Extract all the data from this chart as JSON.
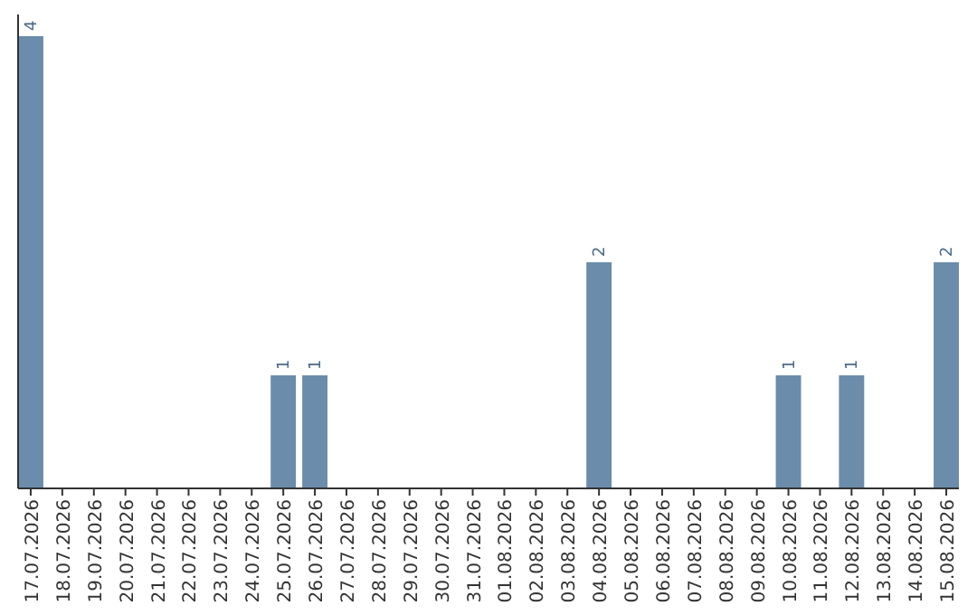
{
  "chart_data": {
    "type": "bar",
    "categories": [
      "17.07.2026",
      "18.07.2026",
      "19.07.2026",
      "20.07.2026",
      "21.07.2026",
      "22.07.2026",
      "23.07.2026",
      "24.07.2026",
      "25.07.2026",
      "26.07.2026",
      "27.07.2026",
      "28.07.2026",
      "29.07.2026",
      "30.07.2026",
      "31.07.2026",
      "01.08.2026",
      "02.08.2026",
      "03.08.2026",
      "04.08.2026",
      "05.08.2026",
      "06.08.2026",
      "07.08.2026",
      "08.08.2026",
      "09.08.2026",
      "10.08.2026",
      "11.08.2026",
      "12.08.2026",
      "13.08.2026",
      "14.08.2026",
      "15.08.2026"
    ],
    "values": [
      4,
      0,
      0,
      0,
      0,
      0,
      0,
      0,
      1,
      1,
      0,
      0,
      0,
      0,
      0,
      0,
      0,
      0,
      2,
      0,
      0,
      0,
      0,
      0,
      1,
      0,
      1,
      0,
      0,
      2
    ],
    "value_labels": [
      "4",
      null,
      null,
      null,
      null,
      null,
      null,
      null,
      "1",
      "1",
      null,
      null,
      null,
      null,
      null,
      null,
      null,
      null,
      "2",
      null,
      null,
      null,
      null,
      null,
      "1",
      null,
      "1",
      null,
      null,
      "2"
    ],
    "color": "#6b8caa"
  }
}
